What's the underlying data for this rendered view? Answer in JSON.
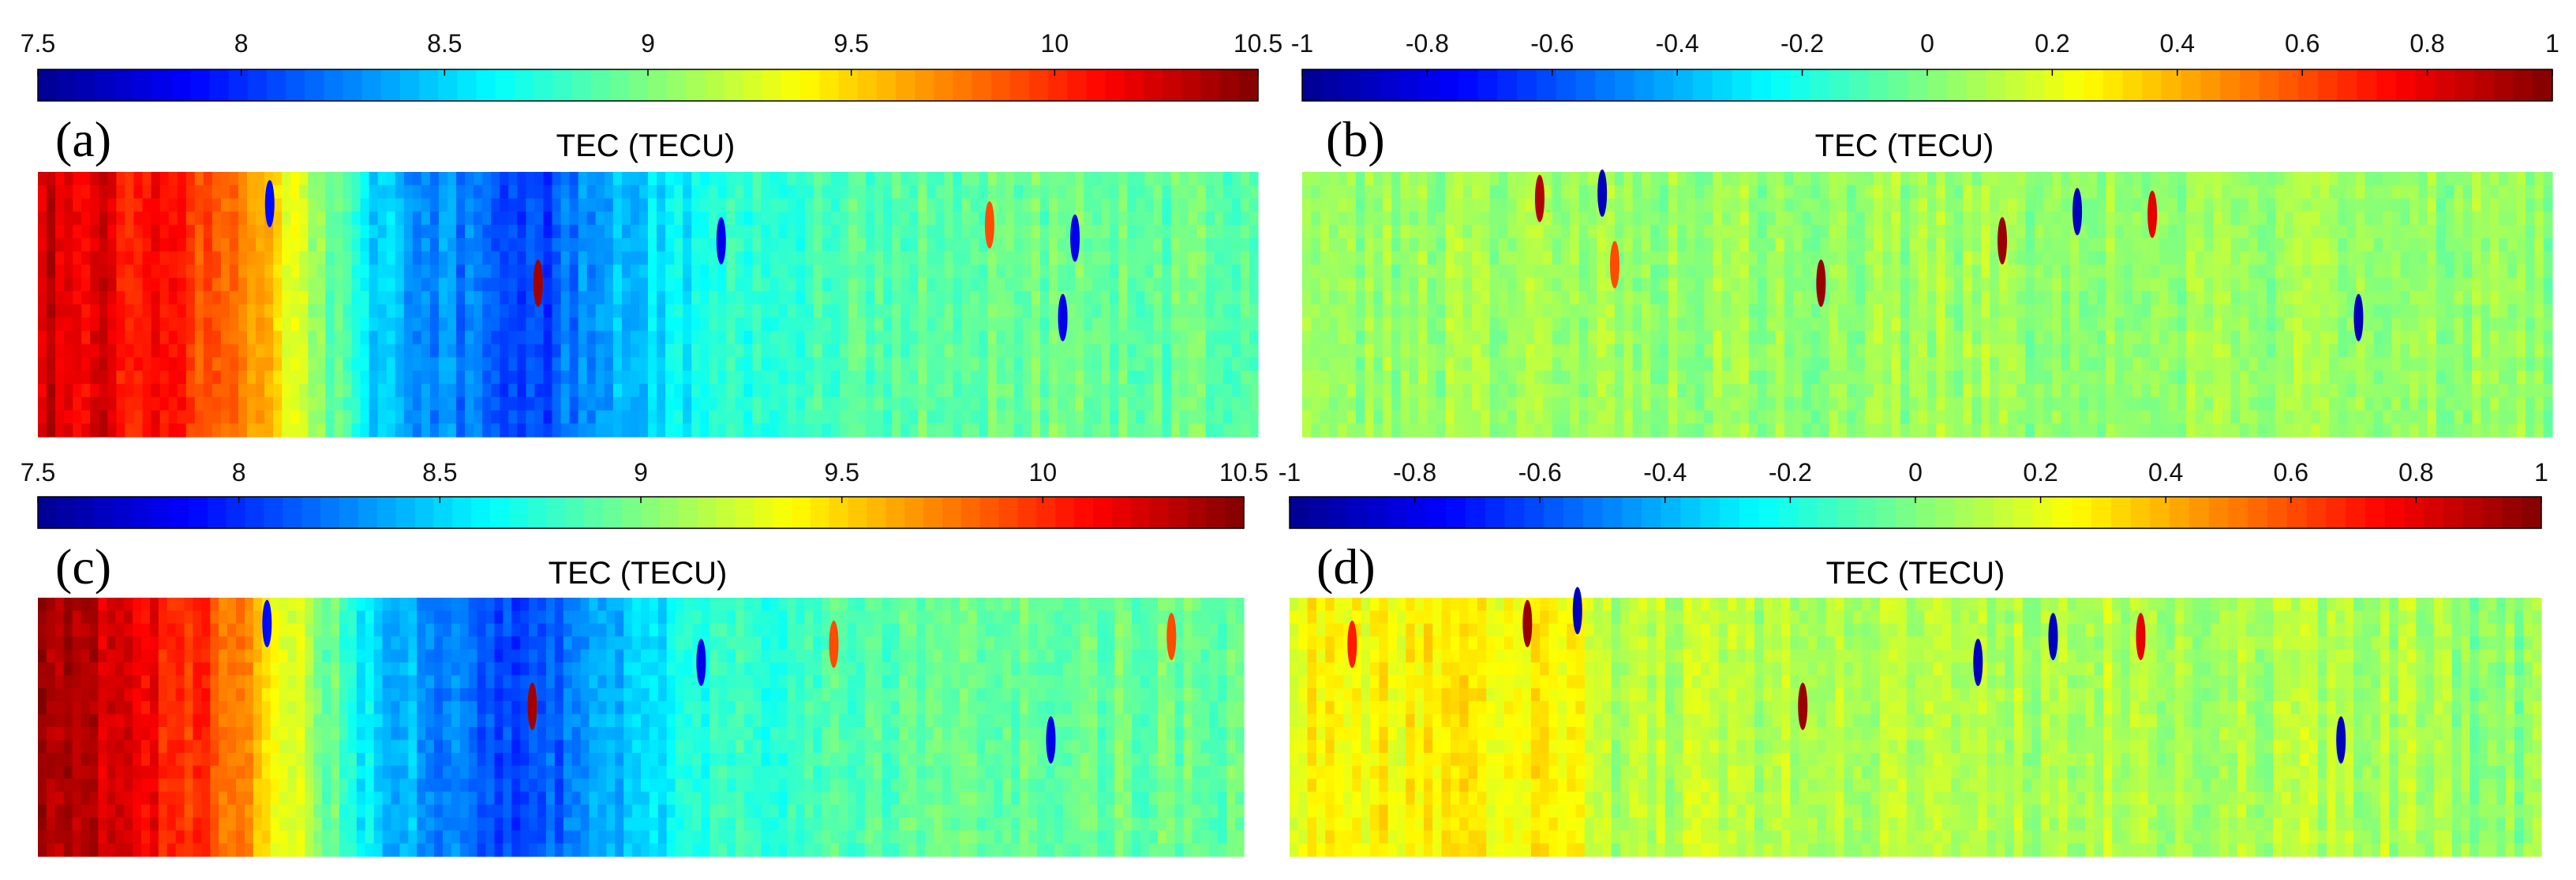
{
  "figure": {
    "colormap_name": "jet",
    "colormap_stops": [
      "#00008f",
      "#0000ff",
      "#00ffff",
      "#7fff7f",
      "#ffff00",
      "#ff0000",
      "#800000"
    ]
  },
  "chart_data": [
    {
      "type": "heatmap",
      "panel_label": "(a)",
      "title": "TEC (TECU)",
      "colorbar": {
        "min": 7.5,
        "max": 10.5,
        "ticks": [
          7.5,
          8,
          8.5,
          9,
          9.5,
          10,
          10.5
        ],
        "tick_labels": [
          "7.5",
          "8",
          "8.5",
          "9",
          "9.5",
          "10",
          "10.5"
        ]
      },
      "field": {
        "description": "TEC map: ~10.3 TECU on left edge falling to ~8.0 TECU trough near 40% width, ~8.9 TECU on right",
        "profile_x": [
          0,
          0.05,
          0.15,
          0.22,
          0.28,
          0.33,
          0.4,
          0.45,
          0.55,
          0.7,
          0.85,
          1.0
        ],
        "profile_value": [
          10.3,
          10.2,
          9.9,
          9.2,
          8.5,
          8.3,
          8.0,
          8.3,
          8.7,
          8.9,
          8.95,
          8.9
        ]
      },
      "anomalies": [
        {
          "x": 0.19,
          "y": 0.12,
          "value": 7.9
        },
        {
          "x": 0.41,
          "y": 0.42,
          "value": 10.4
        },
        {
          "x": 0.56,
          "y": 0.26,
          "value": 7.8
        },
        {
          "x": 0.84,
          "y": 0.55,
          "value": 7.8
        },
        {
          "x": 0.85,
          "y": 0.25,
          "value": 7.8
        },
        {
          "x": 0.78,
          "y": 0.2,
          "value": 9.9
        }
      ]
    },
    {
      "type": "heatmap",
      "panel_label": "(b)",
      "title": "TEC (TECU)",
      "colorbar": {
        "min": -1,
        "max": 1,
        "ticks": [
          -1,
          -0.8,
          -0.6,
          -0.4,
          -0.2,
          0,
          0.2,
          0.4,
          0.6,
          0.8,
          1
        ],
        "tick_labels": [
          "-1",
          "-0.8",
          "-0.6",
          "-0.4",
          "-0.2",
          "0",
          "0.2",
          "0.4",
          "0.6",
          "0.8",
          "1"
        ]
      },
      "field": {
        "description": "Residual TEC noise field around 0.05 with scattered dipole anomalies",
        "profile_x": [
          0,
          1.0
        ],
        "profile_value": [
          0.05,
          0.05
        ]
      },
      "anomalies": [
        {
          "x": 0.19,
          "y": 0.1,
          "value": 0.9
        },
        {
          "x": 0.24,
          "y": 0.08,
          "value": -0.9
        },
        {
          "x": 0.415,
          "y": 0.42,
          "value": 0.95
        },
        {
          "x": 0.56,
          "y": 0.26,
          "value": 0.95
        },
        {
          "x": 0.62,
          "y": 0.15,
          "value": -0.9
        },
        {
          "x": 0.68,
          "y": 0.16,
          "value": 0.8
        },
        {
          "x": 0.845,
          "y": 0.55,
          "value": -0.9
        },
        {
          "x": 0.25,
          "y": 0.35,
          "value": 0.6
        }
      ]
    },
    {
      "type": "heatmap",
      "panel_label": "(c)",
      "title": "TEC (TECU)",
      "colorbar": {
        "min": 7.5,
        "max": 10.5,
        "ticks": [
          7.5,
          8,
          8.5,
          9,
          9.5,
          10,
          10.5
        ],
        "tick_labels": [
          "7.5",
          "8",
          "8.5",
          "9",
          "9.5",
          "10",
          "10.5"
        ]
      },
      "field": {
        "description": "Reconstructed TEC map: ~10.4 TECU on left edge, trough ~8.0 TECU near 40% width, ~8.9 TECU right",
        "profile_x": [
          0,
          0.05,
          0.15,
          0.22,
          0.28,
          0.33,
          0.4,
          0.45,
          0.55,
          0.7,
          0.85,
          1.0
        ],
        "profile_value": [
          10.4,
          10.3,
          9.9,
          9.2,
          8.5,
          8.3,
          8.0,
          8.3,
          8.7,
          8.9,
          8.95,
          8.9
        ]
      },
      "anomalies": [
        {
          "x": 0.19,
          "y": 0.1,
          "value": 7.9
        },
        {
          "x": 0.41,
          "y": 0.42,
          "value": 10.4
        },
        {
          "x": 0.55,
          "y": 0.25,
          "value": 7.8
        },
        {
          "x": 0.84,
          "y": 0.55,
          "value": 7.8
        },
        {
          "x": 0.66,
          "y": 0.18,
          "value": 9.9
        },
        {
          "x": 0.94,
          "y": 0.15,
          "value": 9.9
        }
      ]
    },
    {
      "type": "heatmap",
      "panel_label": "(d)",
      "title": "TEC (TECU)",
      "colorbar": {
        "min": -1,
        "max": 1,
        "ticks": [
          -1,
          -0.8,
          -0.6,
          -0.4,
          -0.2,
          0,
          0.2,
          0.4,
          0.6,
          0.8,
          1
        ],
        "tick_labels": [
          "-1",
          "-0.8",
          "-0.6",
          "-0.4",
          "-0.2",
          "0",
          "0.2",
          "0.4",
          "0.6",
          "0.8",
          "1"
        ]
      },
      "field": {
        "description": "Residual field: ~0.25 on left quarter, ~0.1 in the middle, ~0.05 on right edge",
        "profile_x": [
          0,
          0.23,
          0.24,
          0.92,
          0.93,
          1.0
        ],
        "profile_value": [
          0.25,
          0.25,
          0.1,
          0.1,
          0.02,
          0.02
        ]
      },
      "anomalies": [
        {
          "x": 0.19,
          "y": 0.1,
          "value": 0.95
        },
        {
          "x": 0.23,
          "y": 0.05,
          "value": -0.9
        },
        {
          "x": 0.41,
          "y": 0.42,
          "value": 0.95
        },
        {
          "x": 0.55,
          "y": 0.25,
          "value": -0.9
        },
        {
          "x": 0.61,
          "y": 0.15,
          "value": -0.9
        },
        {
          "x": 0.68,
          "y": 0.15,
          "value": 0.8
        },
        {
          "x": 0.84,
          "y": 0.55,
          "value": -0.9
        },
        {
          "x": 0.05,
          "y": 0.18,
          "value": 0.7
        }
      ]
    }
  ]
}
